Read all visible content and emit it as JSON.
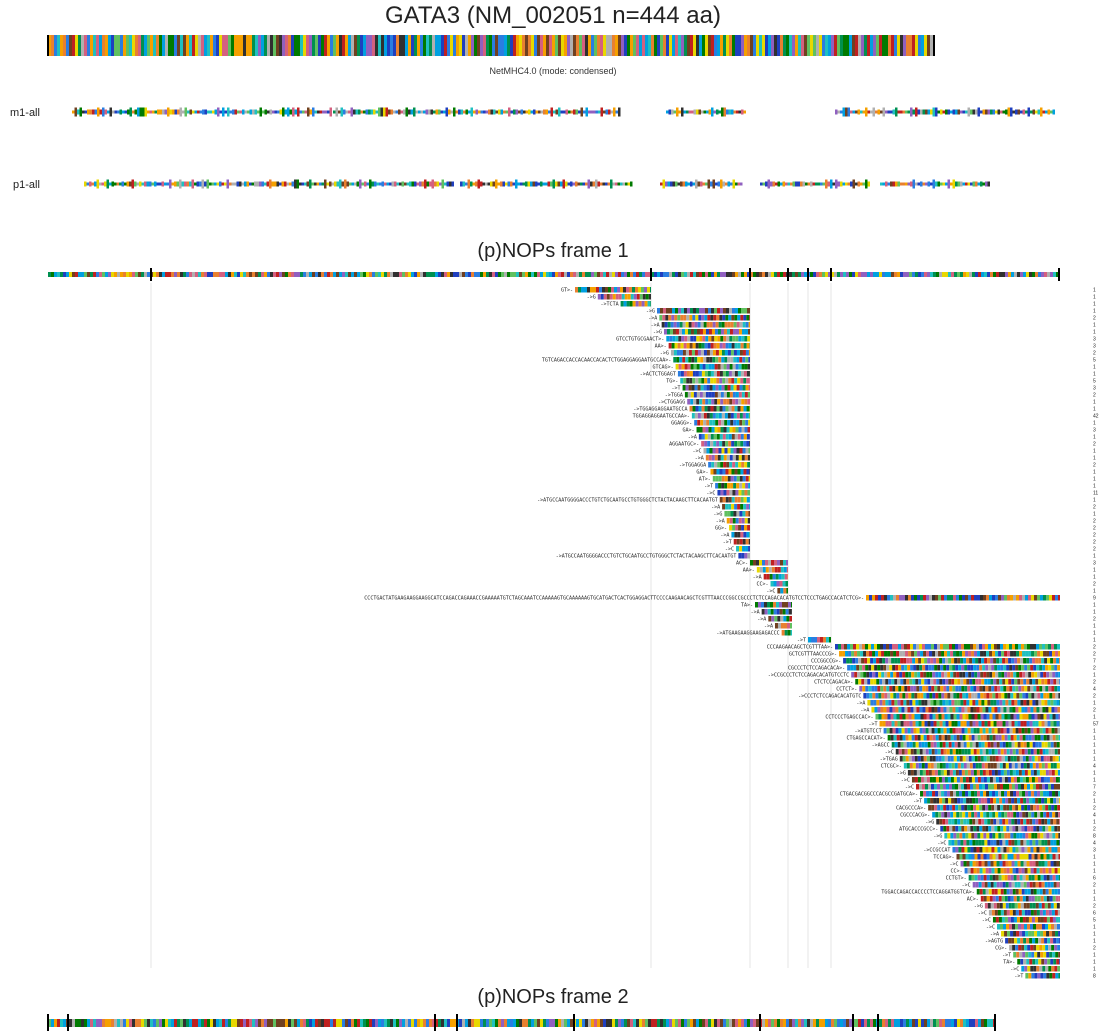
{
  "header": {
    "title": "GATA3 (NM_002051 n=444 aa)",
    "method_caption": "NetMHC4.0 (mode: condensed)"
  },
  "tracks": [
    {
      "label": "m1-all"
    },
    {
      "label": "p1-all"
    }
  ],
  "frame1": {
    "title": "(p)NOPs frame 1"
  },
  "frame2": {
    "title": "(p)NOPs frame 2"
  },
  "palette": [
    "#1f3fbf",
    "#2a7de1",
    "#00a0e0",
    "#20c0c0",
    "#009050",
    "#007a00",
    "#e8d800",
    "#f5a000",
    "#e88030",
    "#c02020",
    "#d46080",
    "#9060c0",
    "#b0b0b0",
    "#303030",
    "#704020",
    "#60c060"
  ],
  "chart_data": {
    "type": "heatmap",
    "title": "GATA3 (NM_002051 n=444 aa)",
    "protein_length": 444,
    "annotation": "NetMHC4.0 (mode: condensed)",
    "tracks": [
      "m1-all",
      "p1-all"
    ],
    "frame1_rows": [
      {
        "label": "GT>-",
        "count": "1"
      },
      {
        "label": "->G",
        "count": "1"
      },
      {
        "label": "->TCTA",
        "count": "1"
      },
      {
        "label": "->G",
        "count": "1"
      },
      {
        "label": "->A",
        "count": "2"
      },
      {
        "label": "->A",
        "count": "1"
      },
      {
        "label": "->G",
        "count": "1"
      },
      {
        "label": "GTCCTGTGCGAACT>-",
        "count": "3"
      },
      {
        "label": "AA>-",
        "count": "3"
      },
      {
        "label": "->G",
        "count": "2"
      },
      {
        "label": "TGTCAGACCACCACAACCACACTCTGGAGGAGGAATGCCAA>-",
        "count": "5"
      },
      {
        "label": "GTCAG>-",
        "count": "1"
      },
      {
        "label": "->ACTCTGGAGT",
        "count": "1"
      },
      {
        "label": "TG>-",
        "count": "5"
      },
      {
        "label": "->T",
        "count": "3"
      },
      {
        "label": "->TGGA",
        "count": "2"
      },
      {
        "label": "->CTGGAGG",
        "count": "1"
      },
      {
        "label": "->TGGAGGAGGAATGCCA",
        "count": "1"
      },
      {
        "label": "TGGAGGAGGAATGCCAA>-",
        "count": "42"
      },
      {
        "label": "GGAGG>-",
        "count": "1"
      },
      {
        "label": "GA>-",
        "count": "3"
      },
      {
        "label": "->A",
        "count": "1"
      },
      {
        "label": "AGGAATGC>-",
        "count": "2"
      },
      {
        "label": "->C",
        "count": "1"
      },
      {
        "label": "->A",
        "count": "1"
      },
      {
        "label": "->TGGAGGA",
        "count": "2"
      },
      {
        "label": "GA>-",
        "count": "1"
      },
      {
        "label": "AT>-",
        "count": "1"
      },
      {
        "label": "->T",
        "count": "1"
      },
      {
        "label": "->C",
        "count": "11"
      },
      {
        "label": "->ATGCCAATGGGGACCCTGTCTGCAATGCCTGTGGGCTCTACTACAAGCTTCACAATGT",
        "count": "1"
      },
      {
        "label": "->A",
        "count": "2"
      },
      {
        "label": "->G",
        "count": "1"
      },
      {
        "label": "->A",
        "count": "2"
      },
      {
        "label": "GG>-",
        "count": "2"
      },
      {
        "label": "->A",
        "count": "2"
      },
      {
        "label": "->T",
        "count": "2"
      },
      {
        "label": "->C",
        "count": "2"
      },
      {
        "label": "->ATGCCAATGGGGACCCTGTCTGCAATGCCTGTGGGCTCTACTACAAGCTTCACAATGT",
        "count": "1"
      },
      {
        "label": "AC>-",
        "count": "3"
      },
      {
        "label": "AA>-",
        "count": "1"
      },
      {
        "label": "->A",
        "count": "1"
      },
      {
        "label": "CC>-",
        "count": "2"
      },
      {
        "label": "->C",
        "count": "1"
      },
      {
        "label": "CCCTGACTATGAAGAAGGAAGGCATCCAGACCAGAAACCGAAAAATGTCTAGCAAATCCAAAAAGTGCAAAAAAGTGCATGACTCACTGGAGGACTTCCCCAAGAACAGCTCGTTTAACCCGGCCGCCCTCTCCAGACACATGTCCTCCCTGAGCCACATCTCG>-",
        "count": "9"
      },
      {
        "label": "TA>-",
        "count": "1"
      },
      {
        "label": "->A",
        "count": "1"
      },
      {
        "label": "->A",
        "count": "2"
      },
      {
        "label": "->A",
        "count": "1"
      },
      {
        "label": "->ATGAAGAAGGAAGAGACCC",
        "count": "1"
      },
      {
        "label": "->T",
        "count": "1"
      },
      {
        "label": "CCCAAGAACAGCTCGTTTAA>-",
        "count": "2"
      },
      {
        "label": "GCTCGTTTAACCCG>-",
        "count": "2"
      },
      {
        "label": "CCCGGCCG>-",
        "count": "7"
      },
      {
        "label": "CGCCCTCTCCAGACACA>-",
        "count": "2"
      },
      {
        "label": "->CCGCCCTCTCCAGACACATGTCCTC",
        "count": "1"
      },
      {
        "label": "CTCTCCAGACA>-",
        "count": "2"
      },
      {
        "label": "CCTCT>-",
        "count": "4"
      },
      {
        "label": "->CCCTCTCCAGACACATGTC",
        "count": "2"
      },
      {
        "label": "->A",
        "count": "1"
      },
      {
        "label": "->A",
        "count": "2"
      },
      {
        "label": "CCTCCCTGAGCCAC>-",
        "count": "1"
      },
      {
        "label": "->T",
        "count": "57"
      },
      {
        "label": "->ATGTCCT",
        "count": "1"
      },
      {
        "label": "CTGAGCCACAT>-",
        "count": "1"
      },
      {
        "label": "->AGCC",
        "count": "1"
      },
      {
        "label": "->C",
        "count": "1"
      },
      {
        "label": "->TGAG",
        "count": "1"
      },
      {
        "label": "CTCGC>-",
        "count": "4"
      },
      {
        "label": "->G",
        "count": "1"
      },
      {
        "label": "->C",
        "count": "1"
      },
      {
        "label": "->C",
        "count": "7"
      },
      {
        "label": "CTGACGACGGCCCACGCCGATGCA>-",
        "count": "2"
      },
      {
        "label": "->T",
        "count": "1"
      },
      {
        "label": "CACGCCCA>-",
        "count": "2"
      },
      {
        "label": "CGCCCACG>-",
        "count": "4"
      },
      {
        "label": "->G",
        "count": "1"
      },
      {
        "label": "ATGCACCCGCC>-",
        "count": "2"
      },
      {
        "label": "->G",
        "count": "8"
      },
      {
        "label": "->C",
        "count": "4"
      },
      {
        "label": "->CCGCCAT",
        "count": "3"
      },
      {
        "label": "TCCAG>-",
        "count": "1"
      },
      {
        "label": "->C",
        "count": "1"
      },
      {
        "label": "CC>-",
        "count": "1"
      },
      {
        "label": "CCTGT>-",
        "count": "6"
      },
      {
        "label": "->C",
        "count": "2"
      },
      {
        "label": "TGGACCAGACCACCCCTCCAGGATGGTCA>-",
        "count": "1"
      },
      {
        "label": "AC>-",
        "count": "1"
      },
      {
        "label": "->G",
        "count": "2"
      },
      {
        "label": "->C",
        "count": "6"
      },
      {
        "label": "->C",
        "count": "5"
      },
      {
        "label": "->C",
        "count": "1"
      },
      {
        "label": "->A",
        "count": "1"
      },
      {
        "label": "->AGTG",
        "count": "1"
      },
      {
        "label": "CG>-",
        "count": "2"
      },
      {
        "label": "->T",
        "count": "1"
      },
      {
        "label": "TA>-",
        "count": "1"
      },
      {
        "label": "->C",
        "count": "1"
      },
      {
        "label": "->T",
        "count": "8"
      }
    ]
  }
}
